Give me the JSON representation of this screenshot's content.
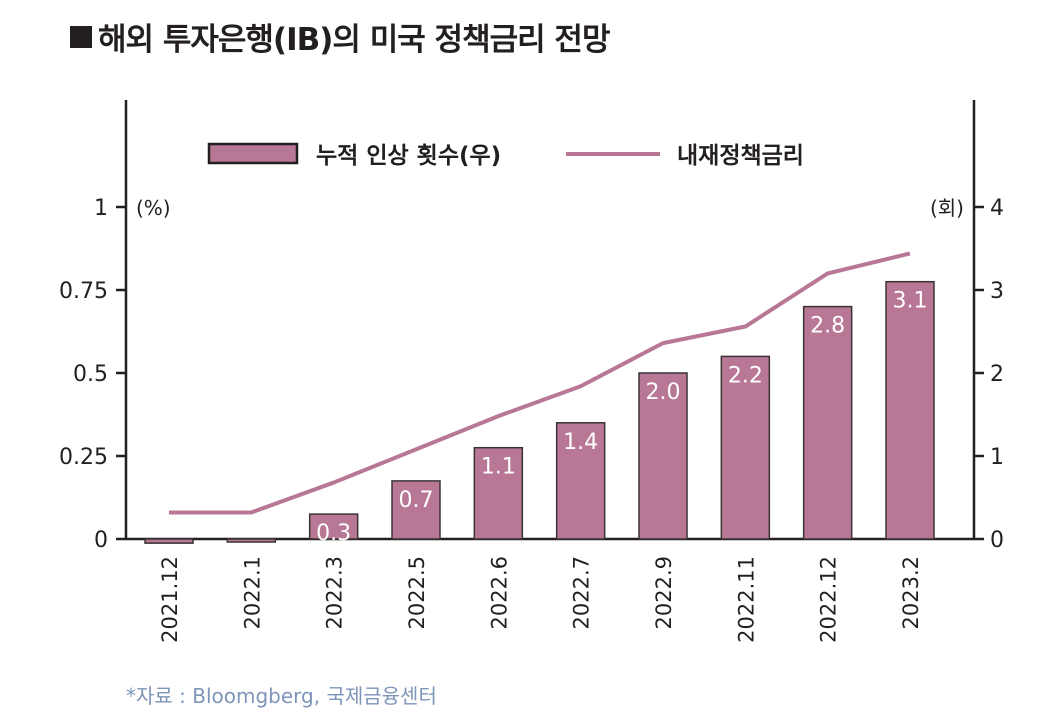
{
  "title": "해외 투자은행(IB)의 미국 정책금리 전망",
  "source": "*자료 : Bloomgberg, 국제금융센터",
  "chart_data": {
    "type": "bar",
    "title": "해외 투자은행(IB)의 미국 정책금리 전망",
    "categories": [
      "2021.12",
      "2022.1",
      "2022.3",
      "2022.5",
      "2022.6",
      "2022.7",
      "2022.9",
      "2022.11",
      "2022.12",
      "2023.2"
    ],
    "series": [
      {
        "name": "누적 인상 횟수(우)",
        "type": "bar",
        "axis": "right",
        "values": [
          -0.05,
          -0.03,
          0.3,
          0.7,
          1.1,
          1.4,
          2.0,
          2.2,
          2.8,
          3.1
        ],
        "labels": [
          "",
          "",
          "0.3",
          "0.7",
          "1.1",
          "1.4",
          "2.0",
          "2.2",
          "2.8",
          "3.1"
        ],
        "color": "#b87795"
      },
      {
        "name": "내재정책금리",
        "type": "line",
        "axis": "left",
        "values": [
          0.08,
          0.08,
          0.17,
          0.27,
          0.37,
          0.46,
          0.59,
          0.64,
          0.8,
          0.86
        ],
        "color": "#b87795"
      }
    ],
    "left_axis": {
      "unit": "(%)",
      "range": [
        0,
        1
      ],
      "ticks": [
        0,
        0.25,
        0.5,
        0.75,
        1
      ],
      "tick_labels": [
        "0",
        "0.25",
        "0.5",
        "0.75",
        "1"
      ]
    },
    "right_axis": {
      "unit": "(회)",
      "range": [
        0,
        4
      ],
      "ticks": [
        0,
        1,
        2,
        3,
        4
      ],
      "tick_labels": [
        "0",
        "1",
        "2",
        "3",
        "4"
      ]
    },
    "xlabel": "",
    "legend": {
      "placement": "top-center",
      "entries": [
        "누적 인상 횟수(우)",
        "내재정책금리"
      ]
    },
    "grid": false
  }
}
